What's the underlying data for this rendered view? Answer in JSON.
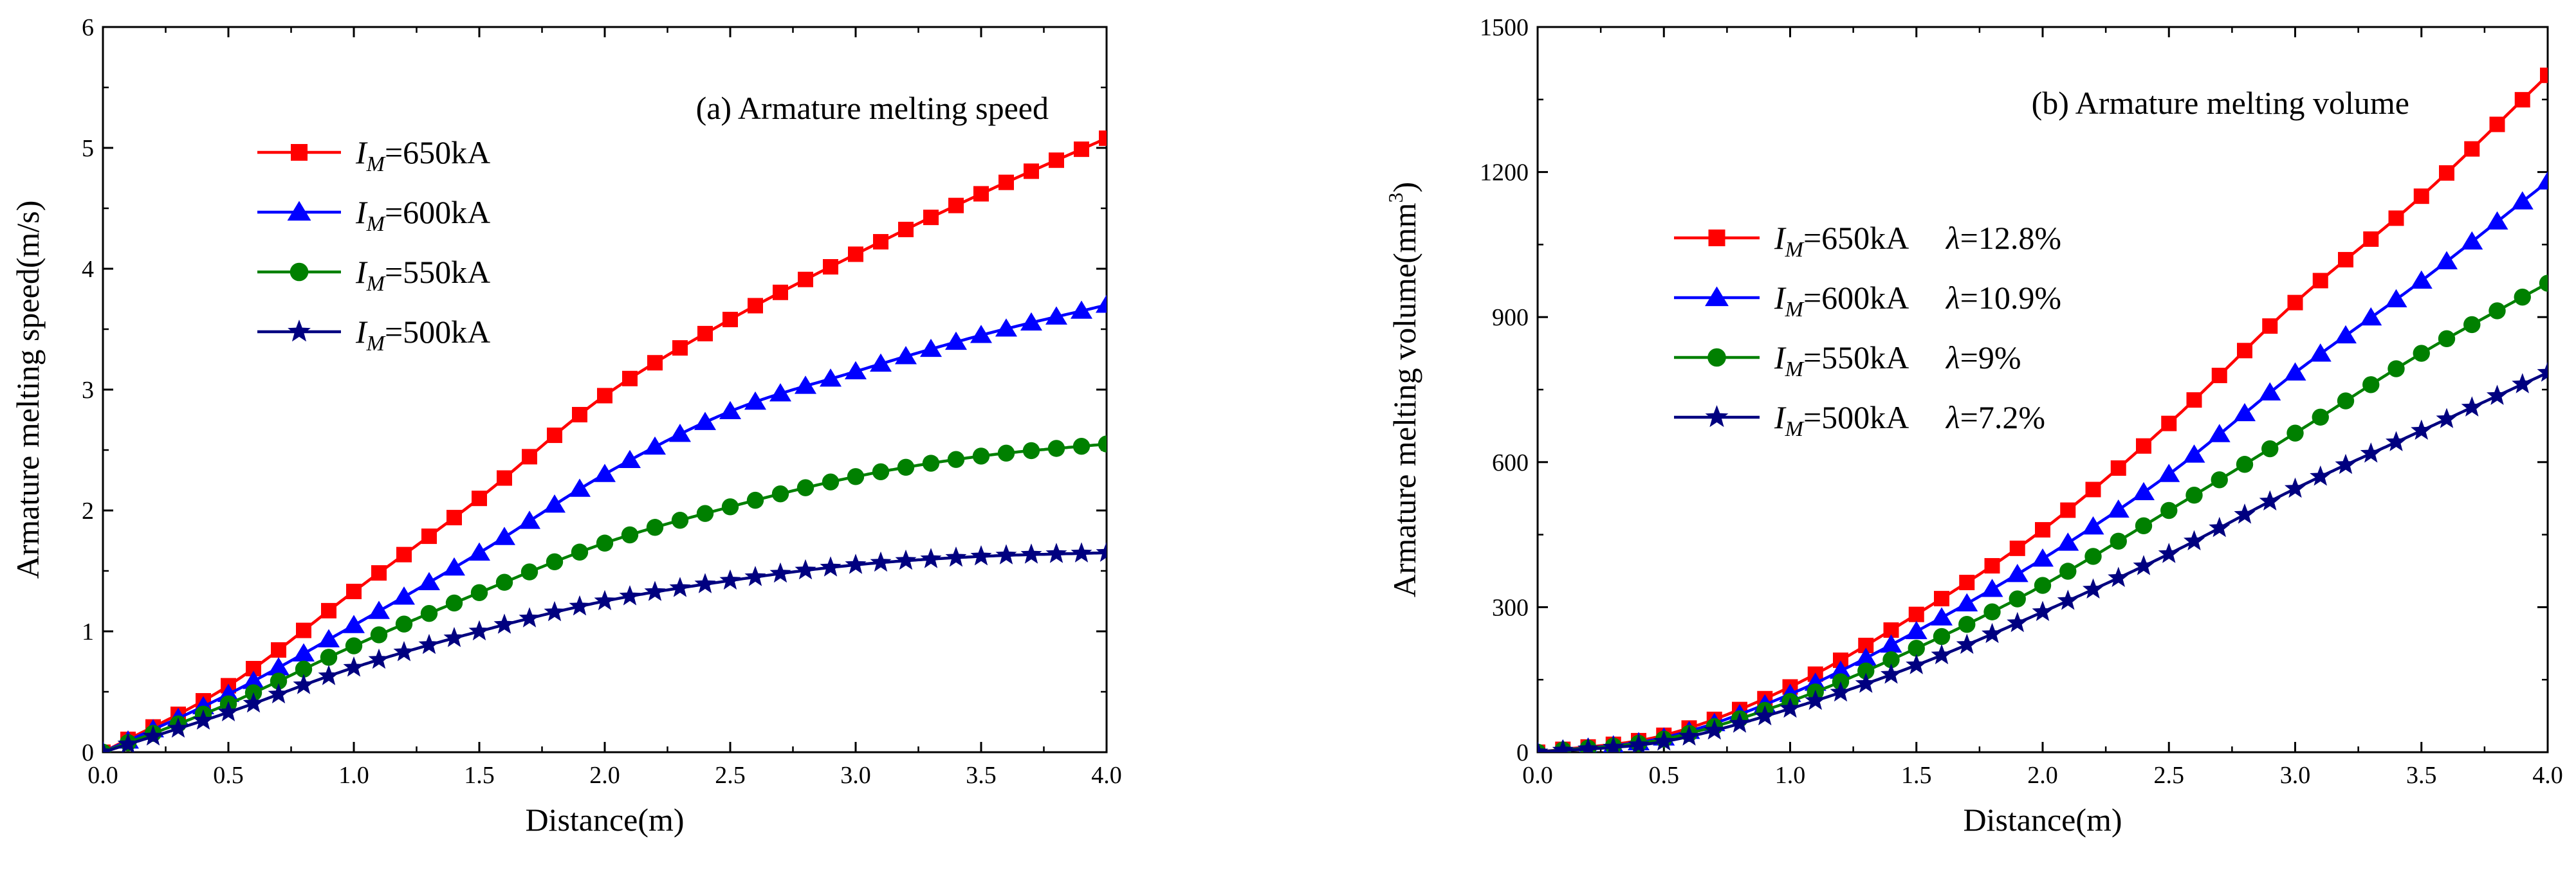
{
  "chart_data": [
    {
      "type": "line",
      "title": "(a) Armature melting speed",
      "xlabel": "Distance(m)",
      "ylabel": "Armature melting speed(m/s)",
      "xlim": [
        0,
        4
      ],
      "ylim": [
        0,
        6
      ],
      "xticks": [
        0,
        0.5,
        1,
        1.5,
        2,
        2.5,
        3,
        3.5,
        4
      ],
      "xtick_labels": [
        "0.0",
        "0.5",
        "1.0",
        "1.5",
        "2.0",
        "2.5",
        "3.0",
        "3.5",
        "4.0"
      ],
      "yticks": [
        0,
        1,
        2,
        3,
        4,
        5,
        6
      ],
      "ytick_labels": [
        "0",
        "1",
        "2",
        "3",
        "4",
        "5",
        "6"
      ],
      "legend_position": "top-left",
      "series": [
        {
          "name": "650kA",
          "label_prefix": "I",
          "label_sub": "M",
          "label_suffix": "=650kA",
          "extra": "",
          "color": "#ff0000",
          "marker": "square",
          "points": [
            [
              0,
              0
            ],
            [
              0.5,
              0.55
            ],
            [
              1,
              1.33
            ],
            [
              1.5,
              2.1
            ],
            [
              2,
              2.95
            ],
            [
              2.5,
              3.58
            ],
            [
              3,
              4.12
            ],
            [
              3.5,
              4.62
            ],
            [
              4,
              5.08
            ]
          ]
        },
        {
          "name": "600kA",
          "label_prefix": "I",
          "label_sub": "M",
          "label_suffix": "=600kA",
          "extra": "",
          "color": "#0000ff",
          "marker": "triangle",
          "points": [
            [
              0,
              0
            ],
            [
              0.5,
              0.48
            ],
            [
              1,
              1.05
            ],
            [
              1.5,
              1.65
            ],
            [
              2,
              2.3
            ],
            [
              2,
              2.3
            ],
            [
              2.5,
              2.82
            ],
            [
              3,
              3.15
            ],
            [
              3.5,
              3.45
            ],
            [
              4,
              3.7
            ]
          ]
        },
        {
          "name": "550kA",
          "label_prefix": "I",
          "label_sub": "M",
          "label_suffix": "=550kA",
          "extra": "",
          "color": "#008000",
          "marker": "circle",
          "points": [
            [
              0,
              0
            ],
            [
              0.5,
              0.4
            ],
            [
              1,
              0.88
            ],
            [
              1.5,
              1.32
            ],
            [
              2,
              1.73
            ],
            [
              2.5,
              2.03
            ],
            [
              3,
              2.28
            ],
            [
              3.5,
              2.45
            ],
            [
              4,
              2.55
            ]
          ]
        },
        {
          "name": "500kA",
          "label_prefix": "I",
          "label_sub": "M",
          "label_suffix": "=500kA",
          "extra": "",
          "color": "#000080",
          "marker": "star",
          "points": [
            [
              0,
              0
            ],
            [
              0.5,
              0.33
            ],
            [
              1,
              0.7
            ],
            [
              1.5,
              1.0
            ],
            [
              2,
              1.25
            ],
            [
              2.5,
              1.42
            ],
            [
              3,
              1.55
            ],
            [
              3.5,
              1.62
            ],
            [
              4,
              1.65
            ]
          ]
        }
      ]
    },
    {
      "type": "line",
      "title": "(b) Armature melting volume",
      "xlabel": "Distance(m)",
      "ylabel": "Armature melting volume(mm",
      "ylabel_sup": "3",
      "ylabel_end": ")",
      "xlim": [
        0,
        4
      ],
      "ylim": [
        0,
        1500
      ],
      "xticks": [
        0,
        0.5,
        1,
        1.5,
        2,
        2.5,
        3,
        3.5,
        4
      ],
      "xtick_labels": [
        "0.0",
        "0.5",
        "1.0",
        "1.5",
        "2.0",
        "2.5",
        "3.0",
        "3.5",
        "4.0"
      ],
      "yticks": [
        0,
        300,
        600,
        900,
        1200,
        1500
      ],
      "ytick_labels": [
        "0",
        "300",
        "600",
        "900",
        "1200",
        "1500"
      ],
      "legend_position": "left",
      "series": [
        {
          "name": "650kA",
          "label_prefix": "I",
          "label_sub": "M",
          "label_suffix": "=650kA",
          "extra_symbol": "λ",
          "extra": "=12.8%",
          "color": "#ff0000",
          "marker": "square",
          "points": [
            [
              0,
              0
            ],
            [
              0.5,
              35
            ],
            [
              1,
              135
            ],
            [
              1.5,
              285
            ],
            [
              2,
              460
            ],
            [
              2.5,
              680
            ],
            [
              3,
              930
            ],
            [
              3.5,
              1150
            ],
            [
              4,
              1400
            ]
          ]
        },
        {
          "name": "600kA",
          "label_prefix": "I",
          "label_sub": "M",
          "label_suffix": "=600kA",
          "extra_symbol": "λ",
          "extra": "=10.9%",
          "color": "#0000ff",
          "marker": "triangle",
          "points": [
            [
              0,
              0
            ],
            [
              0.5,
              30
            ],
            [
              1,
              120
            ],
            [
              1.5,
              250
            ],
            [
              2,
              400
            ],
            [
              2,
              400
            ],
            [
              2.5,
              575
            ],
            [
              3,
              785
            ],
            [
              3.5,
              975
            ],
            [
              4,
              1180
            ]
          ]
        },
        {
          "name": "550kA",
          "label_prefix": "I",
          "label_sub": "M",
          "label_suffix": "=550kA",
          "extra_symbol": "λ",
          "extra": "=9%",
          "color": "#008000",
          "marker": "circle",
          "points": [
            [
              0,
              0
            ],
            [
              0.5,
              27
            ],
            [
              1,
              105
            ],
            [
              1.5,
              215
            ],
            [
              2,
              345
            ],
            [
              2.5,
              500
            ],
            [
              3,
              660
            ],
            [
              3.5,
              825
            ],
            [
              4,
              970
            ]
          ]
        },
        {
          "name": "500kA",
          "label_prefix": "I",
          "label_sub": "M",
          "label_suffix": "=500kA",
          "extra_symbol": "λ",
          "extra": "=7.2%",
          "color": "#000080",
          "marker": "star",
          "points": [
            [
              0,
              0
            ],
            [
              0.5,
              22
            ],
            [
              1,
              90
            ],
            [
              1.5,
              180
            ],
            [
              2,
              290
            ],
            [
              2.5,
              410
            ],
            [
              3,
              545
            ],
            [
              3.5,
              665
            ],
            [
              4,
              785
            ]
          ]
        }
      ]
    }
  ]
}
